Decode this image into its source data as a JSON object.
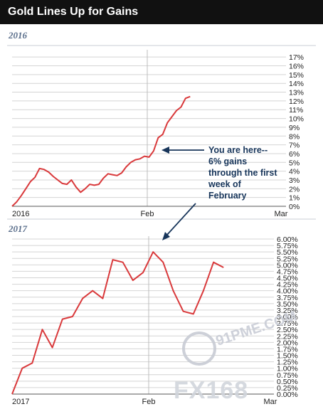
{
  "header": {
    "title": "Gold Lines Up for Gains"
  },
  "annotation": [
    "You are here--",
    "6% gains",
    "through the first",
    "week of",
    "February"
  ],
  "watermark": {
    "site": "91PME.COM",
    "brand": "FX168"
  },
  "colors": {
    "line": "#d9393b",
    "header_bg": "#111111",
    "annotation": "#17355a",
    "year_label": "#5b6f8c"
  },
  "chart_data": [
    {
      "type": "line",
      "panel_label": "2016",
      "x_ticks": [
        "2016",
        "Feb",
        "Mar"
      ],
      "y_ticks": [
        "0%",
        "1%",
        "2%",
        "3%",
        "4%",
        "5%",
        "6%",
        "7%",
        "8%",
        "9%",
        "10%",
        "11%",
        "12%",
        "13%",
        "14%",
        "15%",
        "16%",
        "17%"
      ],
      "ylim": [
        0,
        17.5
      ],
      "grid": true,
      "series": [
        {
          "x": [
            0,
            1,
            2,
            3,
            4,
            5,
            6,
            7,
            8,
            9,
            10,
            11,
            12,
            13,
            14,
            15,
            16,
            17,
            18,
            19,
            20,
            21,
            22,
            23,
            24,
            25,
            26,
            27,
            28,
            29,
            30,
            31,
            32,
            33,
            34,
            35,
            36,
            37,
            38,
            39
          ],
          "values": [
            0,
            0.5,
            1.2,
            2.0,
            2.8,
            3.3,
            4.3,
            4.2,
            3.9,
            3.4,
            3.0,
            2.6,
            2.5,
            3.0,
            2.2,
            1.6,
            2.0,
            2.5,
            2.4,
            2.5,
            3.2,
            3.7,
            3.6,
            3.5,
            3.8,
            4.5,
            5.0,
            5.3,
            5.4,
            5.7,
            5.6,
            6.3,
            7.8,
            8.2,
            9.5,
            10.2,
            10.9,
            11.3,
            12.3,
            12.5
          ]
        }
      ]
    },
    {
      "type": "line",
      "panel_label": "2017",
      "x_ticks": [
        "2017",
        "Feb",
        "Mar"
      ],
      "y_ticks": [
        "0.00%",
        "0.25%",
        "0.50%",
        "0.75%",
        "1.00%",
        "1.25%",
        "1.50%",
        "1.75%",
        "2.00%",
        "2.25%",
        "2.50%",
        "2.75%",
        "3.00%",
        "3.25%",
        "3.50%",
        "3.75%",
        "4.00%",
        "4.25%",
        "4.50%",
        "4.75%",
        "5.00%",
        "5.25%",
        "5.50%",
        "5.75%",
        "6.00%"
      ],
      "ylim": [
        0,
        6.0
      ],
      "grid": true,
      "series": [
        {
          "x": [
            0,
            2,
            4,
            6,
            8,
            10,
            12,
            14,
            16,
            18,
            20,
            22,
            24,
            26,
            28,
            30,
            32,
            34,
            36,
            38,
            40,
            42
          ],
          "values": [
            0.0,
            1.0,
            1.2,
            2.5,
            1.8,
            2.9,
            3.0,
            3.7,
            4.0,
            3.7,
            5.2,
            5.1,
            4.4,
            4.7,
            5.5,
            5.1,
            4.0,
            3.2,
            3.1,
            4.0,
            5.1,
            4.9
          ]
        }
      ]
    }
  ]
}
